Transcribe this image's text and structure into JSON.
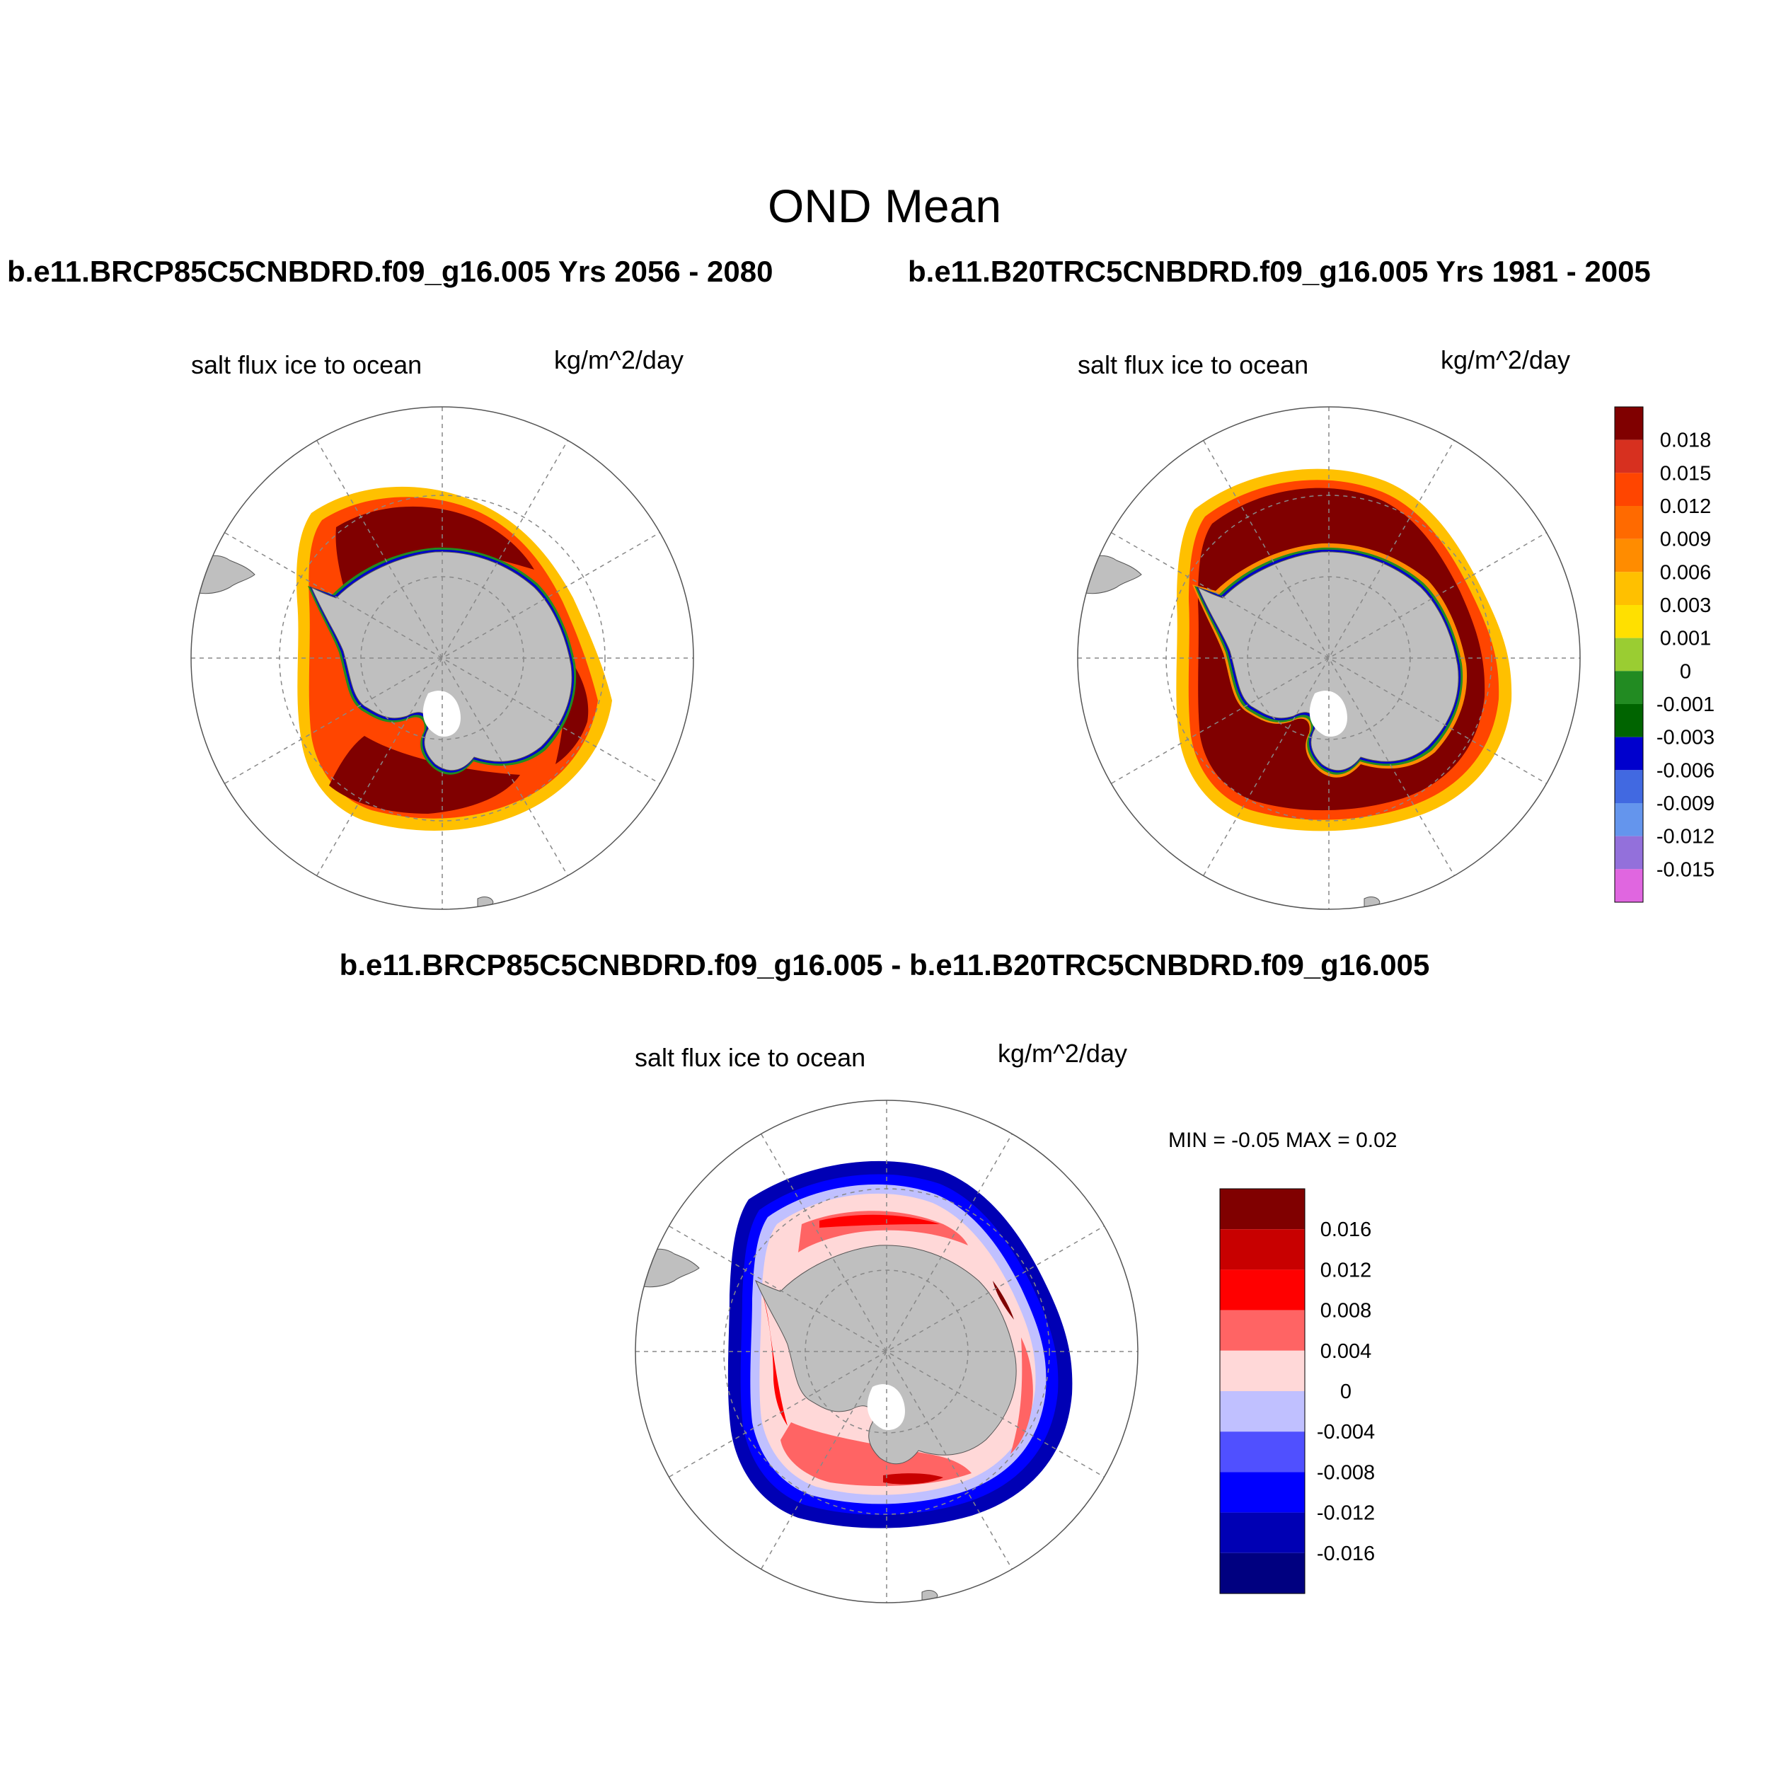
{
  "figure": {
    "title": "OND Mean",
    "case_a_title": "b.e11.BRCP85C5CNBDRD.f09_g16.005  Yrs 2056 - 2080",
    "case_b_title": "b.e11.B20TRC5CNBDRD.f09_g16.005  Yrs 1981 - 2005",
    "diff_title": "b.e11.BRCP85C5CNBDRD.f09_g16.005 - b.e11.B20TRC5CNBDRD.f09_g16.005"
  },
  "panels": {
    "a": {
      "variable": "salt flux ice to ocean",
      "units": "kg/m^2/day"
    },
    "b": {
      "variable": "salt flux ice to ocean",
      "units": "kg/m^2/day"
    },
    "diff": {
      "variable": "salt flux ice to ocean",
      "units": "kg/m^2/day",
      "minmax": "MIN =  -0.05 MAX =   0.02"
    }
  },
  "colorbar_main": {
    "labels": [
      "0.018",
      "0.015",
      "0.012",
      "0.009",
      "0.006",
      "0.003",
      "0.001",
      "0",
      "-0.001",
      "-0.003",
      "-0.006",
      "-0.009",
      "-0.012",
      "-0.015"
    ],
    "colors": [
      "#800000",
      "#d7301f",
      "#ff4500",
      "#ff6a00",
      "#ff8c00",
      "#ffc000",
      "#ffe000",
      "#9acd32",
      "#228b22",
      "#006400",
      "#0000cd",
      "#4169e1",
      "#6495ed",
      "#9370db",
      "#e066e0"
    ]
  },
  "colorbar_diff": {
    "labels": [
      "0.016",
      "0.012",
      "0.008",
      "0.004",
      "0",
      "-0.004",
      "-0.008",
      "-0.012",
      "-0.016"
    ],
    "colors": [
      "#800000",
      "#c80000",
      "#ff0000",
      "#ff6464",
      "#ffd8d8",
      "#c0c0ff",
      "#5050ff",
      "#0000ff",
      "#0000b4",
      "#000080"
    ]
  },
  "map_style": {
    "land": "#bfbfbf",
    "grid": "#888888",
    "projection": "south polar stereographic"
  }
}
